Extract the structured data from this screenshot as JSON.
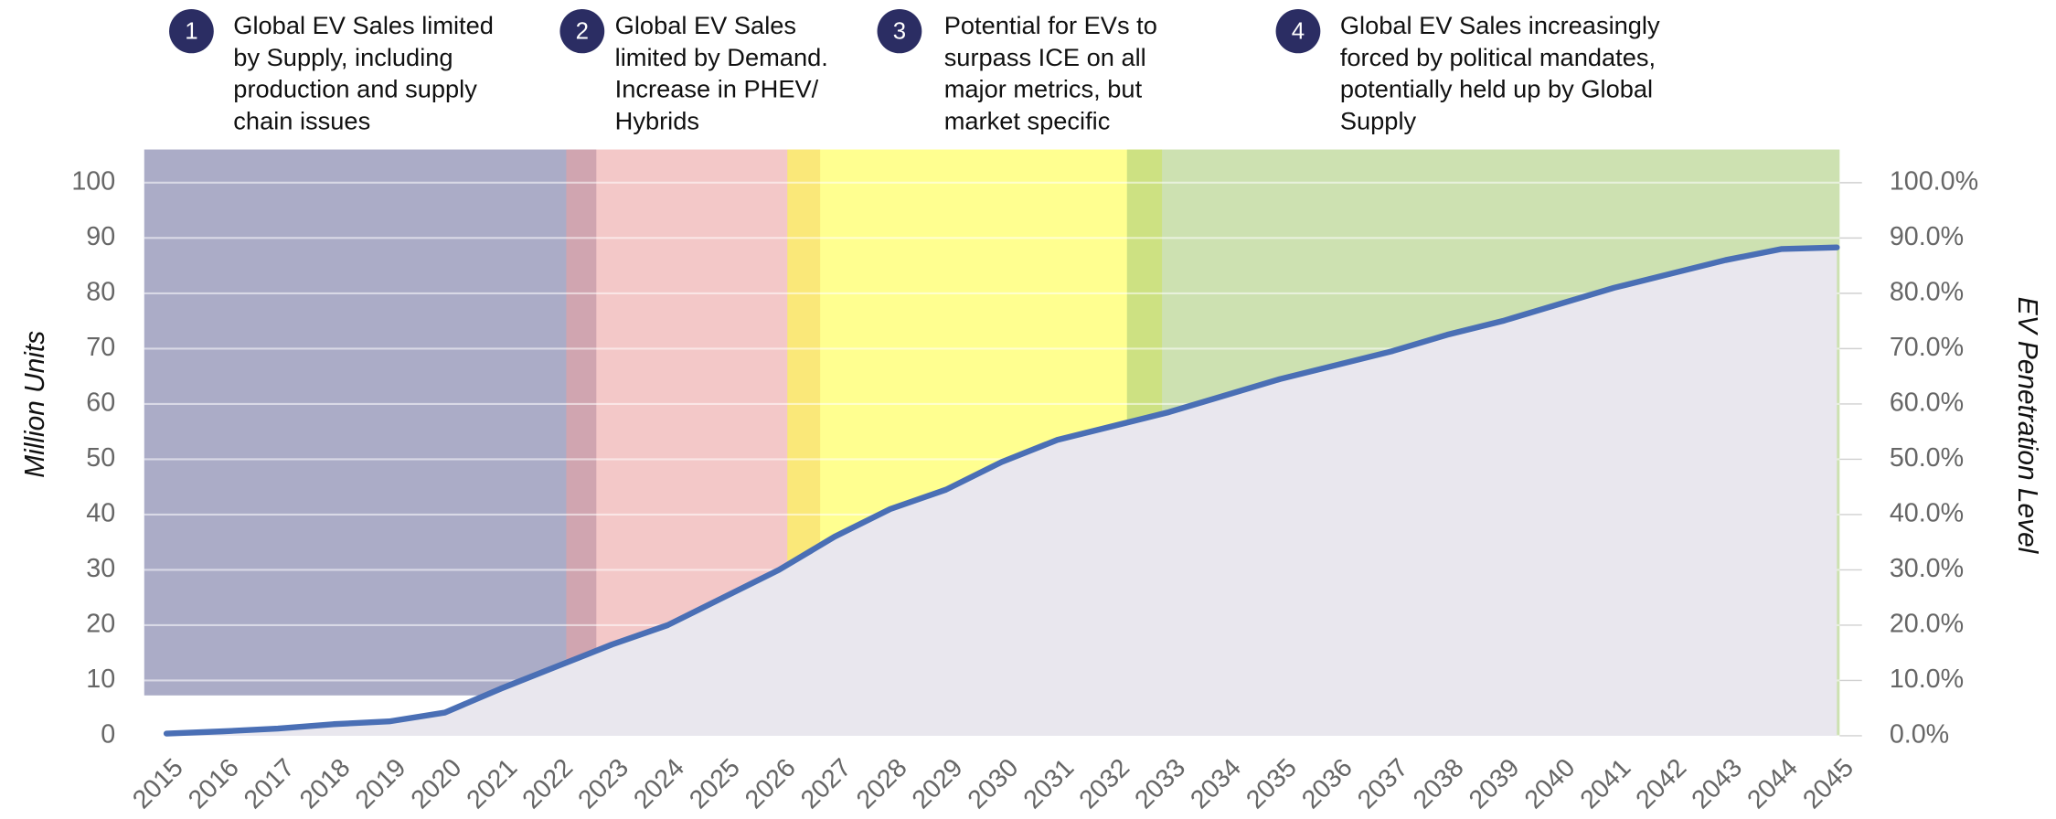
{
  "chart_data": {
    "type": "line",
    "x": [
      2015,
      2016,
      2017,
      2018,
      2019,
      2020,
      2021,
      2022,
      2023,
      2024,
      2025,
      2026,
      2027,
      2028,
      2029,
      2030,
      2031,
      2032,
      2033,
      2034,
      2035,
      2036,
      2037,
      2038,
      2039,
      2040,
      2041,
      2042,
      2043,
      2044,
      2045
    ],
    "series": [
      {
        "color": "#4a6fb5",
        "area_color": "#e9e7ee",
        "values": [
          0.4,
          0.8,
          1.3,
          2.1,
          2.6,
          4.2,
          8.5,
          12.5,
          16.5,
          20,
          25,
          30,
          36,
          41,
          44.5,
          49.5,
          53.5,
          56,
          58.5,
          61.5,
          64.5,
          67,
          69.5,
          72.5,
          75,
          78,
          81,
          83.5,
          86,
          88,
          88.3
        ]
      }
    ],
    "xlim": [
      2014.6,
      2045.05
    ],
    "ylim": [
      0,
      106
    ],
    "yticks": [
      0,
      10,
      20,
      30,
      40,
      50,
      60,
      70,
      80,
      90,
      100
    ],
    "y2lim": [
      0,
      106
    ],
    "y2ticks": [
      {
        "value": 0,
        "label": "0.0%"
      },
      {
        "value": 10,
        "label": "10.0%"
      },
      {
        "value": 20,
        "label": "20.0%"
      },
      {
        "value": 30,
        "label": "30.0%"
      },
      {
        "value": 40,
        "label": "40.0%"
      },
      {
        "value": 50,
        "label": "50.0%"
      },
      {
        "value": 60,
        "label": "60.0%"
      },
      {
        "value": 70,
        "label": "70.0%"
      },
      {
        "value": 80,
        "label": "80.0%"
      },
      {
        "value": 90,
        "label": "90.0%"
      },
      {
        "value": 100,
        "label": "100.0%"
      }
    ],
    "ylabel": "Million Units",
    "y2label": "EV Penetration Level",
    "grid": true,
    "phases": [
      {
        "number": "1",
        "lines": [
          "Global EV Sales limited",
          "by Supply, including",
          "production and supply",
          "chain issues"
        ],
        "start": 2014.6,
        "end": 2022.72,
        "bottom": 7.3,
        "color": "#6e709e"
      },
      {
        "number": "2",
        "lines": [
          "Global EV Sales",
          "limited by Demand.",
          "Increase in PHEV/",
          "Hybrids"
        ],
        "start": 2022.18,
        "end": 2026.74,
        "bottom": 0,
        "color": "#eba0a0"
      },
      {
        "number": "3",
        "lines": [
          "Potential for EVs to",
          "surpass ICE on all",
          "major metrics, but",
          "market specific"
        ],
        "start": 2026.15,
        "end": 2032.88,
        "bottom": 0,
        "color": "#ffff40"
      },
      {
        "number": "4",
        "lines": [
          "Global EV Sales increasingly",
          "forced by political mandates,",
          "potentially held up by Global",
          "Supply"
        ],
        "start": 2032.25,
        "end": 2045.05,
        "bottom": 0,
        "color": "#a8cc78"
      }
    ]
  }
}
